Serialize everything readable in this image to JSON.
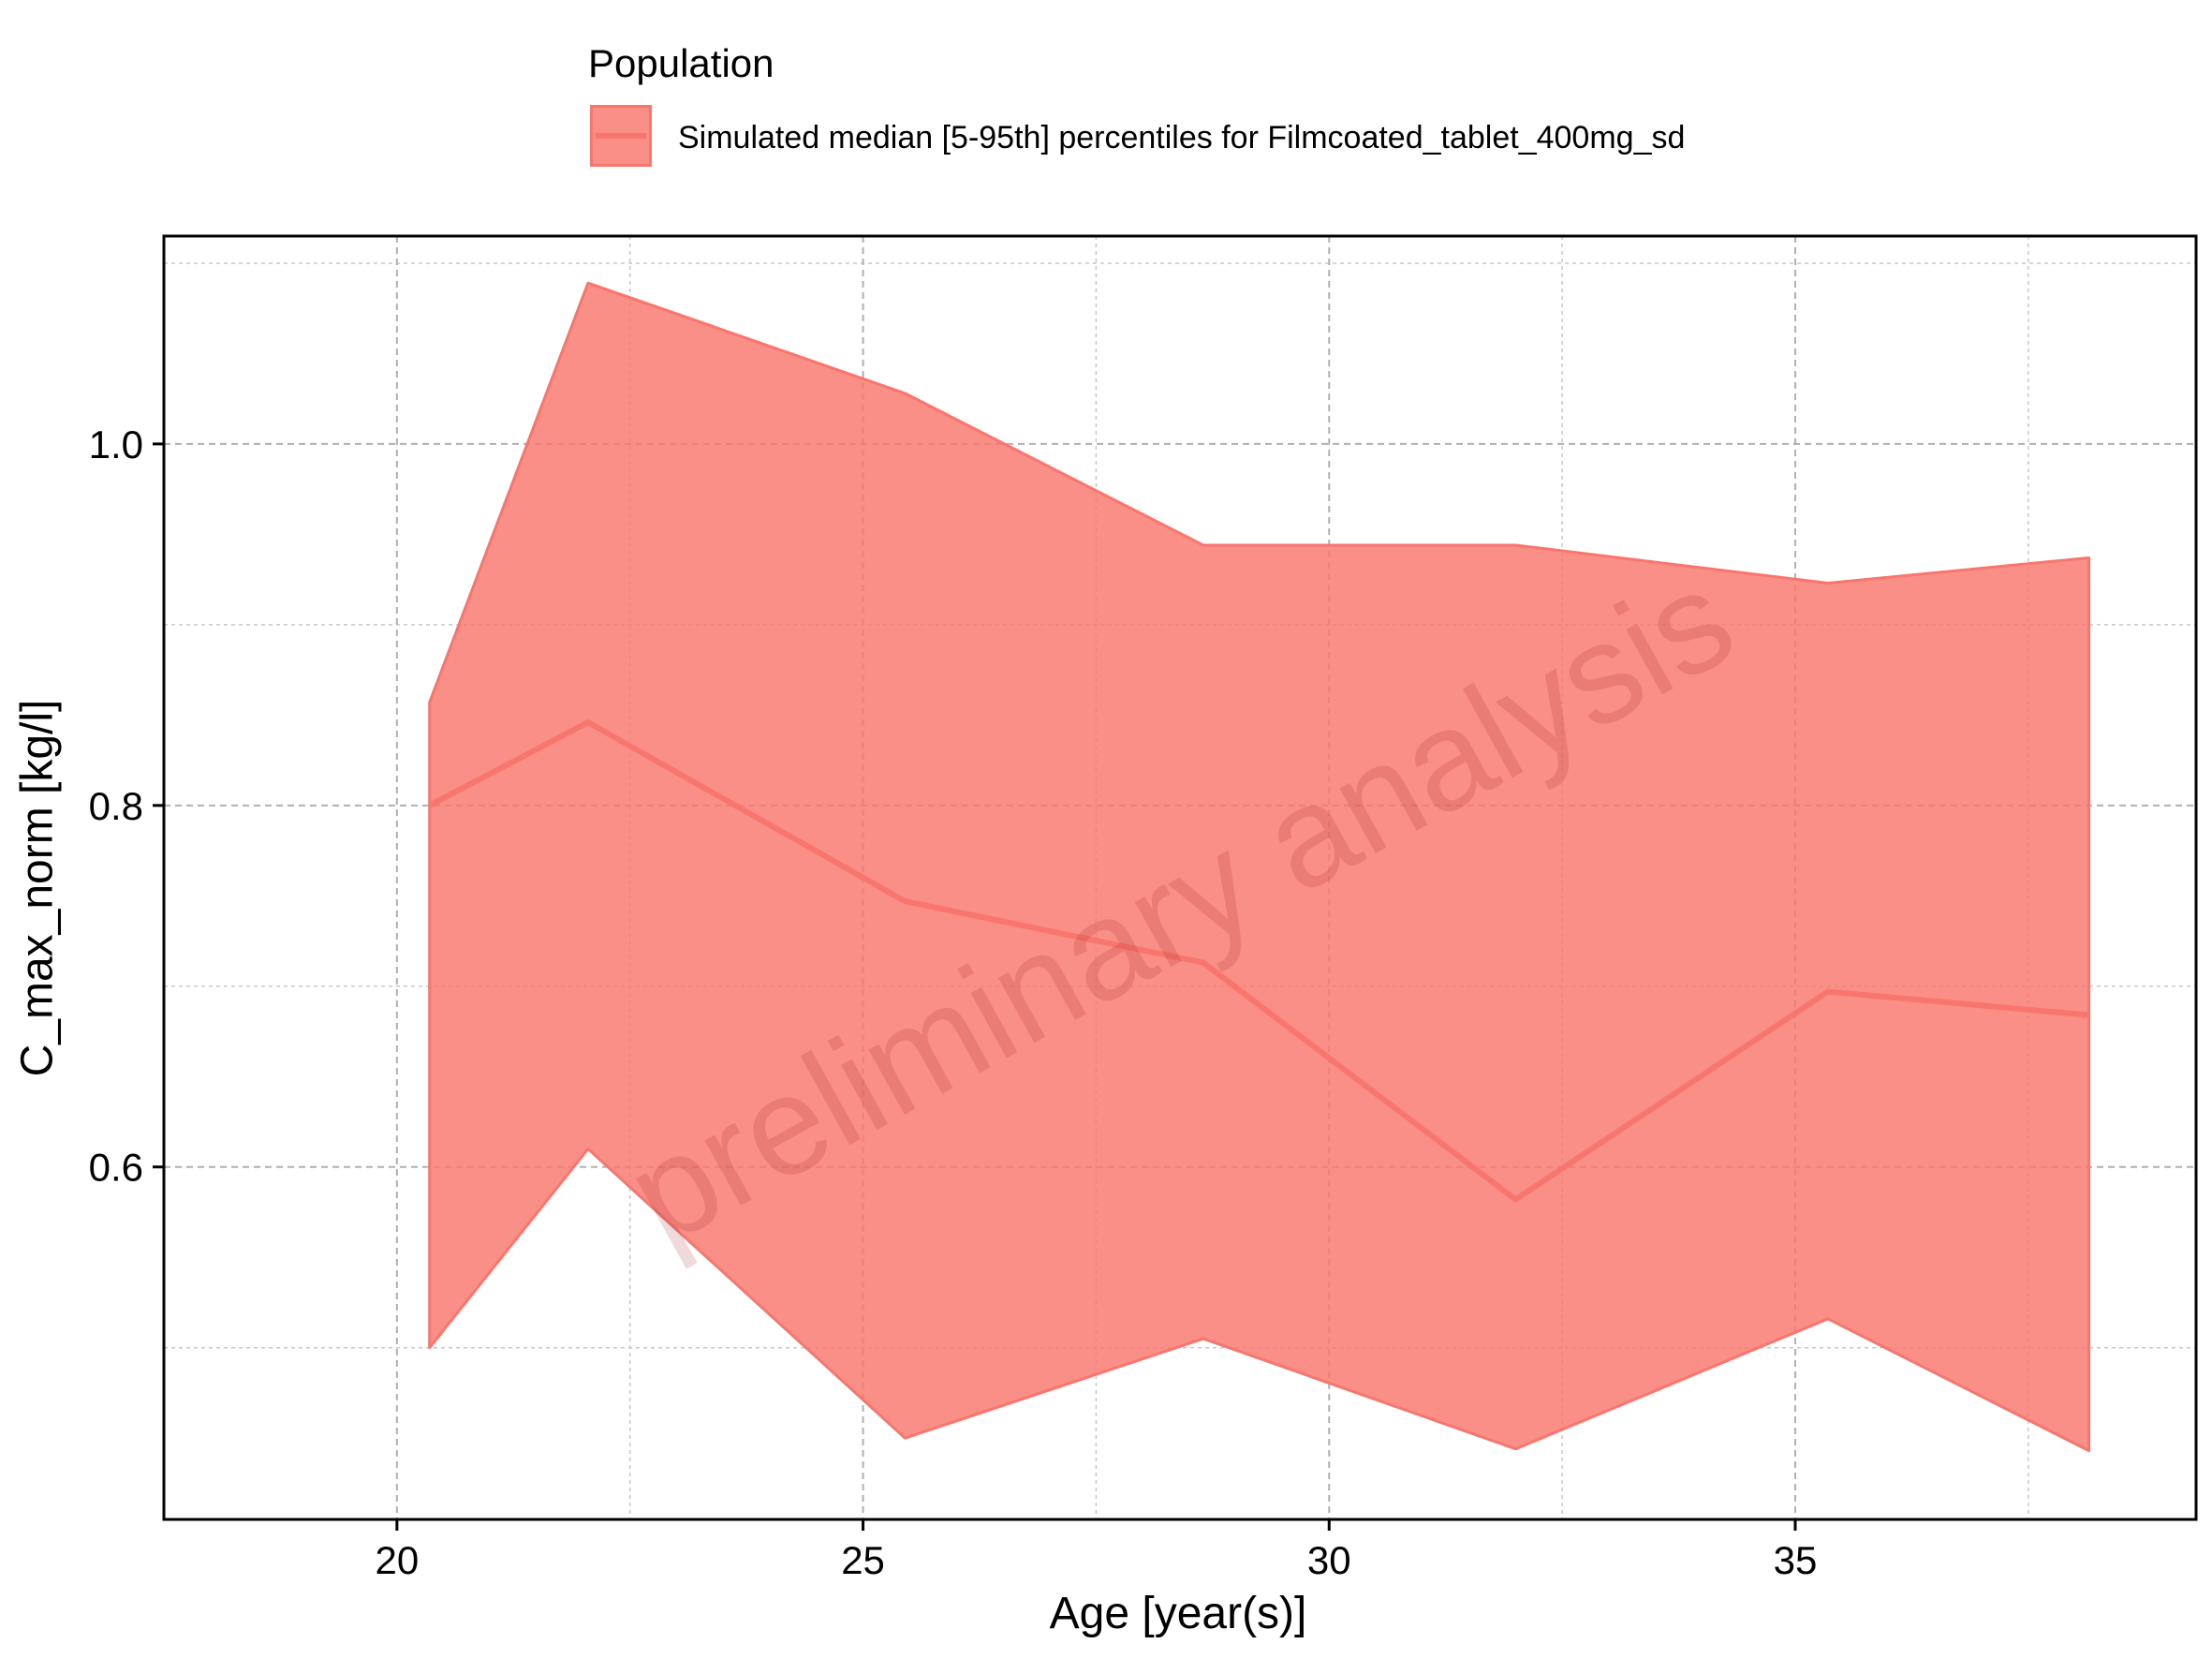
{
  "legend": {
    "title": "Population",
    "label": "Simulated median [5-95th] percentiles for Filmcoated_tablet_400mg_sd"
  },
  "watermark": "preliminary analysis",
  "colors": {
    "ribbon_fill": "#f8766d",
    "ribbon_fill_opacity": 0.82,
    "median_line": "#f8766d",
    "grid": "#c8c8c8",
    "frame": "#000000"
  },
  "chart_data": {
    "type": "area",
    "xlabel": "Age [year(s)]",
    "ylabel": "C_max_norm [kg/l]",
    "xlim": [
      17.5,
      39.3
    ],
    "ylim": [
      0.405,
      1.115
    ],
    "xticks": [
      20,
      25,
      30,
      35
    ],
    "xtick_labels": [
      "20",
      "25",
      "30",
      "35"
    ],
    "yticks": [
      0.6,
      0.8,
      1.0
    ],
    "ytick_labels": [
      "0.6",
      "0.8",
      "1.0"
    ],
    "x_minor_grid": [
      22.5,
      27.5,
      32.5,
      37.5
    ],
    "y_minor_grid": [
      0.5,
      0.7,
      0.9,
      1.1
    ],
    "grid": true,
    "legend_position": "top",
    "x": [
      20.35,
      22.05,
      25.45,
      28.65,
      32.0,
      35.35,
      38.15
    ],
    "series": [
      {
        "name": "Simulated median [5-95th] percentiles for Filmcoated_tablet_400mg_sd",
        "median": [
          0.8,
          0.846,
          0.747,
          0.713,
          0.582,
          0.697,
          0.684
        ],
        "lower": [
          0.5,
          0.61,
          0.45,
          0.505,
          0.444,
          0.516,
          0.443
        ],
        "upper": [
          0.857,
          1.089,
          1.028,
          0.944,
          0.944,
          0.923,
          0.937
        ]
      }
    ]
  }
}
